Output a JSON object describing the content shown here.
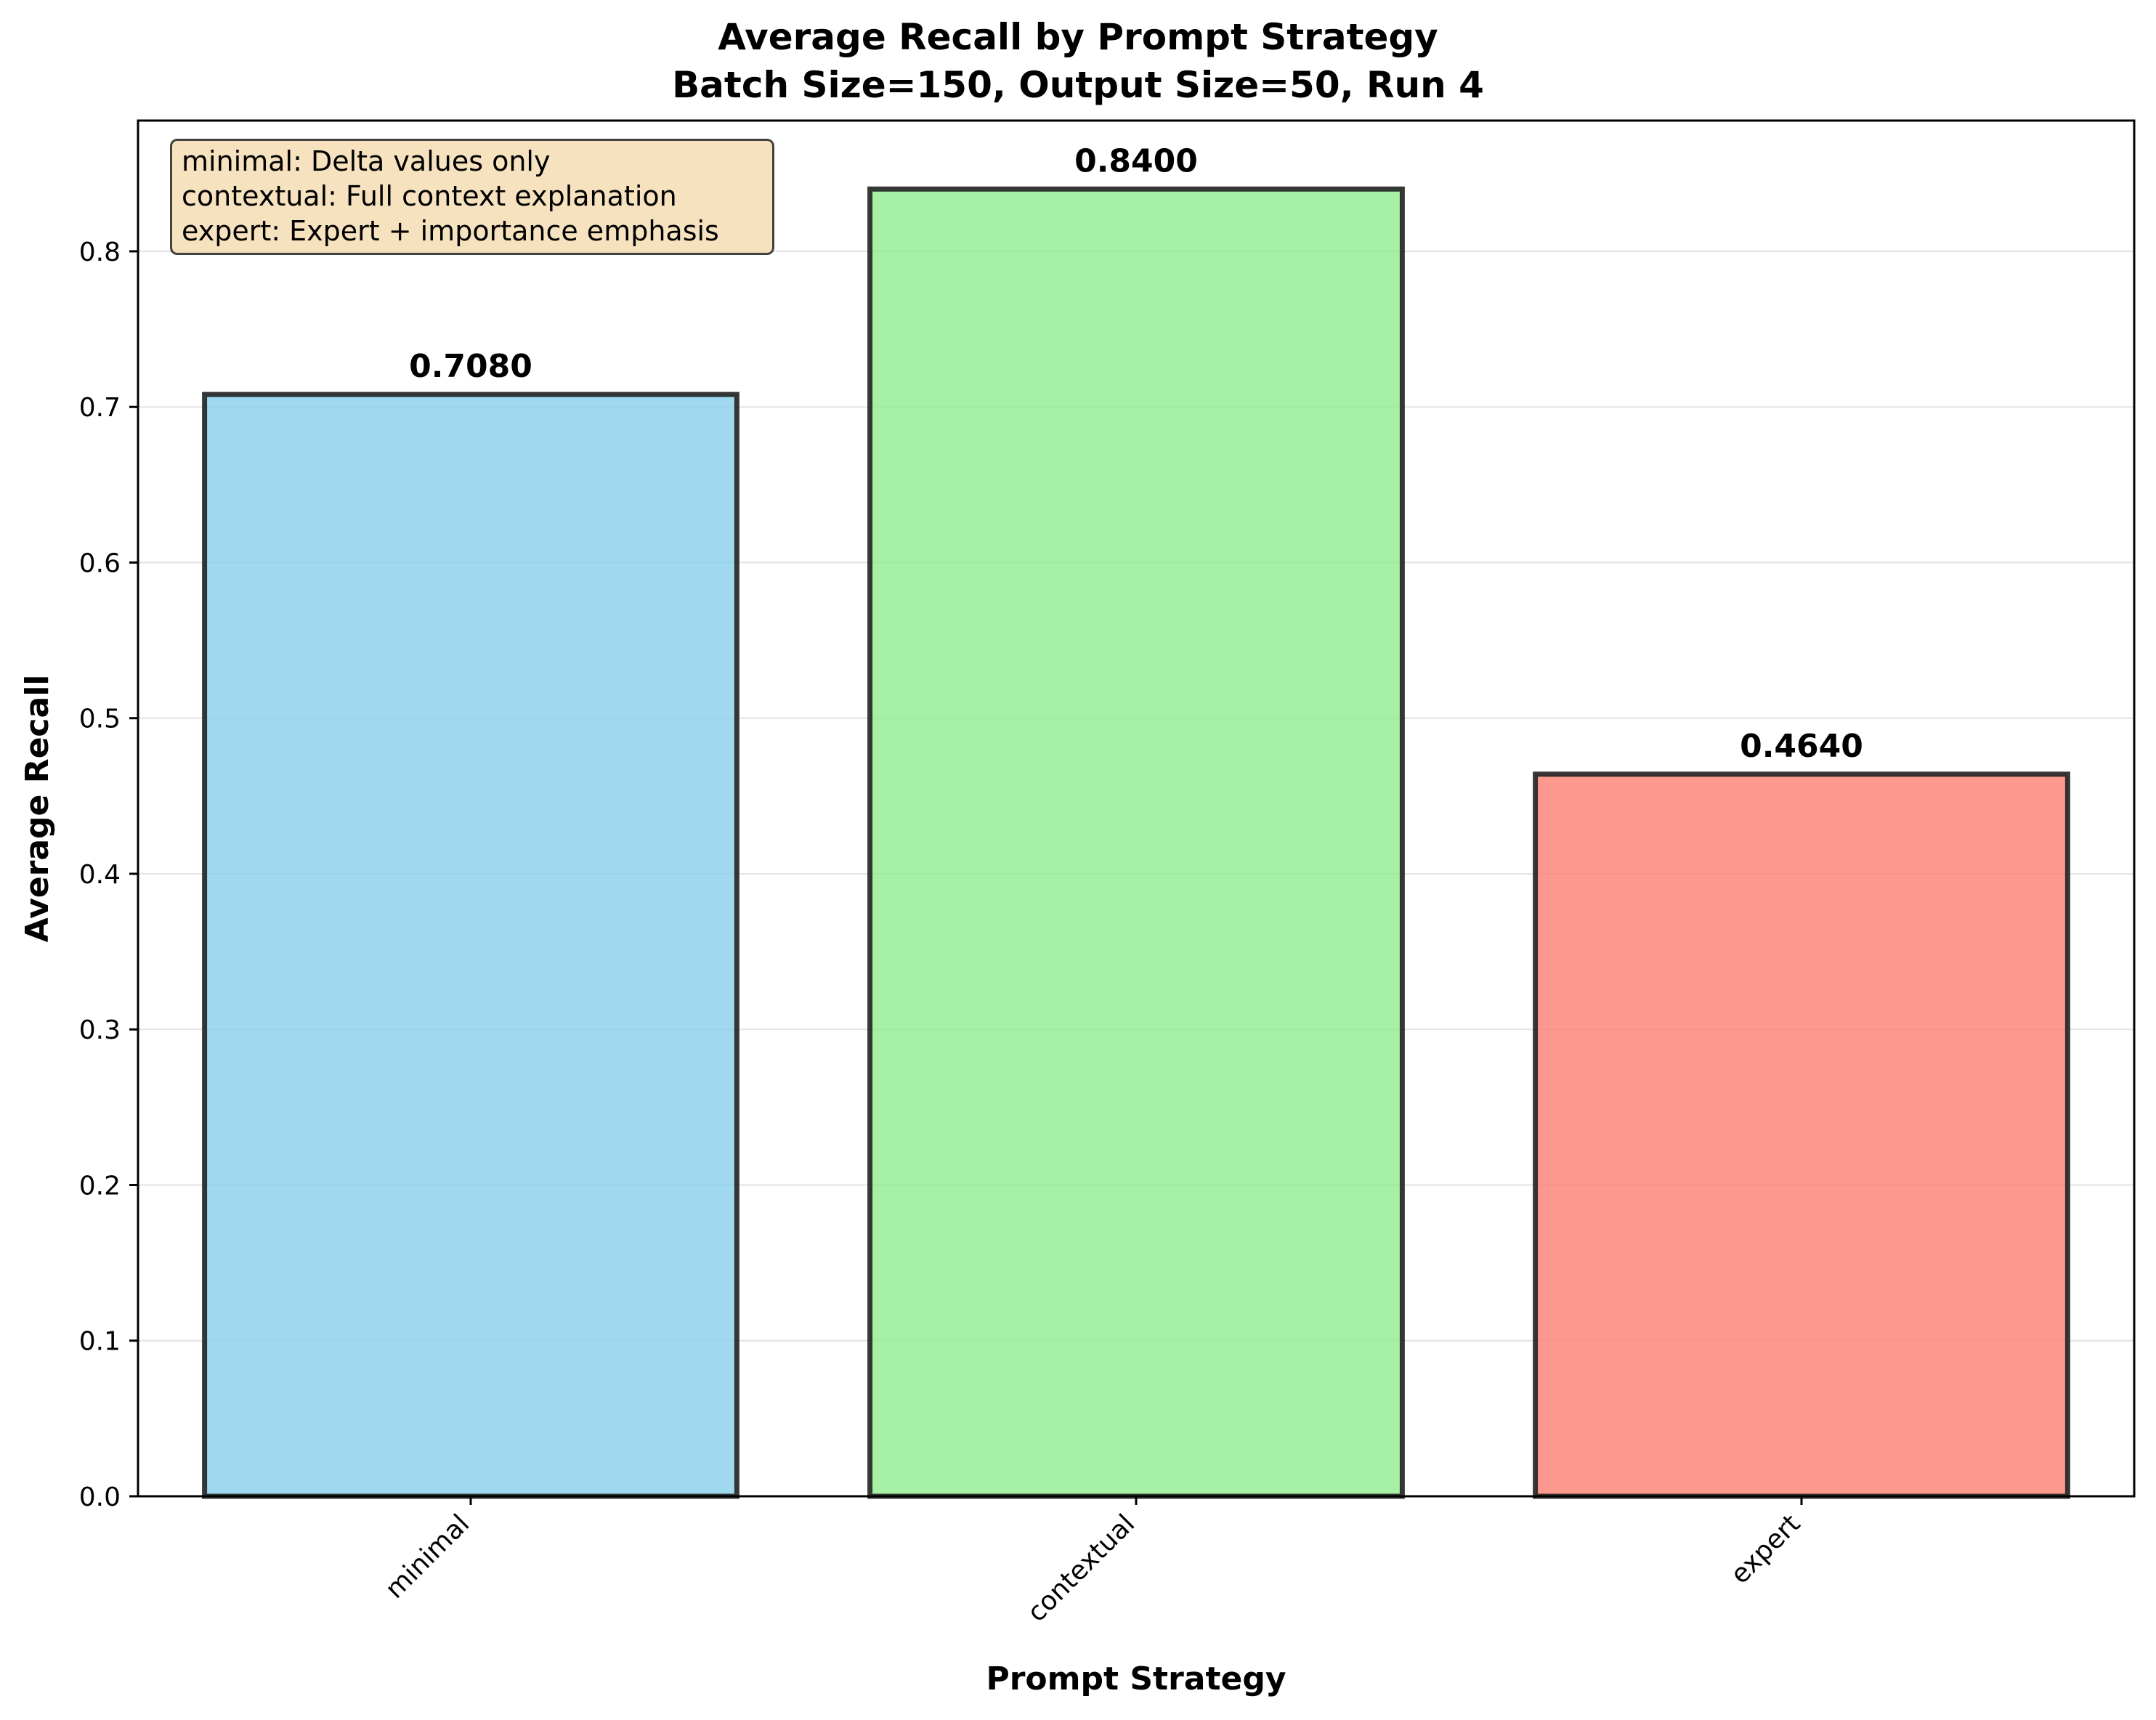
{
  "chart_data": {
    "type": "bar",
    "title_lines": [
      "Average Recall by Prompt Strategy",
      "Batch Size=150, Output Size=50, Run 4"
    ],
    "xlabel": "Prompt Strategy",
    "ylabel": "Average Recall",
    "categories": [
      "minimal",
      "contextual",
      "expert"
    ],
    "values": [
      0.708,
      0.84,
      0.464
    ],
    "value_labels": [
      "0.7080",
      "0.8400",
      "0.4640"
    ],
    "colors": [
      "#87ceeb",
      "#90ee90",
      "#fa8072"
    ],
    "ylim": [
      0,
      0.884
    ],
    "yticks": [
      0.0,
      0.1,
      0.2,
      0.3,
      0.4,
      0.5,
      0.6,
      0.7,
      0.8
    ],
    "ytick_labels": [
      "0.0",
      "0.1",
      "0.2",
      "0.3",
      "0.4",
      "0.5",
      "0.6",
      "0.7",
      "0.8"
    ],
    "grid": "y-axis",
    "annotation_box": {
      "placement": "top-left",
      "lines": [
        "minimal: Delta values only",
        "contextual: Full context explanation",
        "expert: Expert + importance emphasis"
      ]
    }
  }
}
